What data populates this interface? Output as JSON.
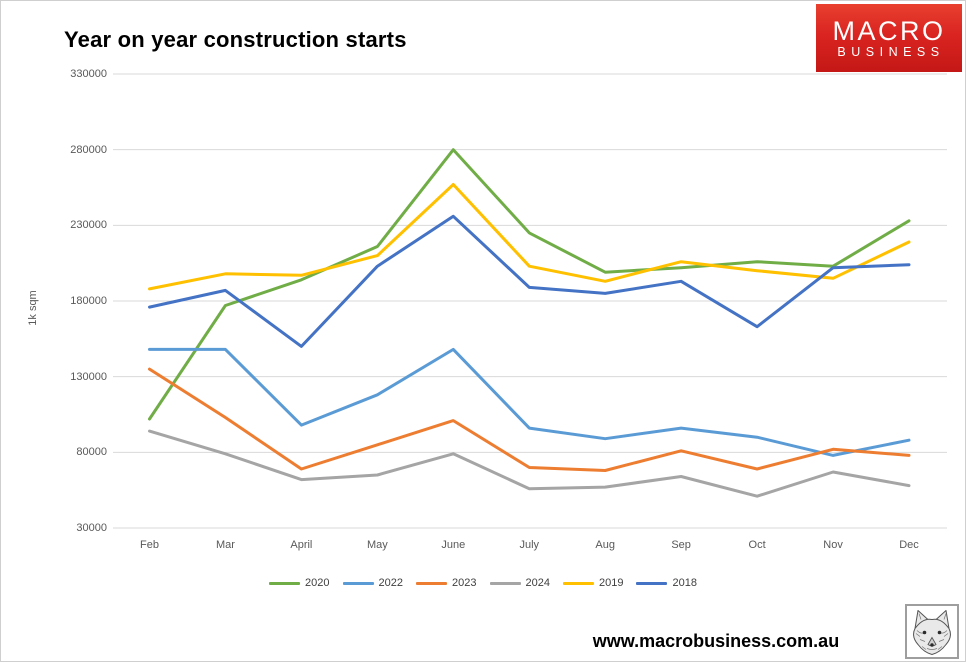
{
  "header": {
    "title": "Year on year construction starts"
  },
  "logo": {
    "line1": "MACRO",
    "line2": "BUSINESS",
    "bg_color": "#d92320",
    "text_color": "#ffffff"
  },
  "chart_data": {
    "type": "line",
    "title": "Year on year construction starts",
    "xlabel": "",
    "ylabel": "1k sqm",
    "categories": [
      "Feb",
      "Mar",
      "April",
      "May",
      "June",
      "July",
      "Aug",
      "Sep",
      "Oct",
      "Nov",
      "Dec"
    ],
    "series": [
      {
        "name": "2020",
        "color": "#70ad47",
        "values": [
          102000,
          177000,
          194000,
          216000,
          280000,
          225000,
          199000,
          202000,
          206000,
          203000,
          233000
        ]
      },
      {
        "name": "2022",
        "color": "#5b9bd5",
        "values": [
          148000,
          148000,
          98000,
          118000,
          148000,
          96000,
          89000,
          96000,
          90000,
          78000,
          88000
        ]
      },
      {
        "name": "2023",
        "color": "#ed7d31",
        "values": [
          135000,
          103000,
          69000,
          85000,
          101000,
          70000,
          68000,
          81000,
          69000,
          82000,
          78000
        ]
      },
      {
        "name": "2024",
        "color": "#a5a5a5",
        "values": [
          94000,
          79000,
          62000,
          65000,
          79000,
          56000,
          57000,
          64000,
          51000,
          67000,
          58000
        ]
      },
      {
        "name": "2019",
        "color": "#ffc000",
        "values": [
          188000,
          198000,
          197000,
          210000,
          257000,
          203000,
          193000,
          206000,
          200000,
          195000,
          219000
        ]
      },
      {
        "name": "2018",
        "color": "#4472c4",
        "values": [
          176000,
          187000,
          150000,
          203000,
          236000,
          189000,
          185000,
          193000,
          163000,
          202000,
          204000
        ]
      }
    ],
    "ylim": [
      30000,
      330000
    ],
    "ytick_step": 50000,
    "grid": true,
    "gridline_color": "#d9d9d9",
    "legend_position": "bottom"
  },
  "footer": {
    "url": "www.macrobusiness.com.au"
  }
}
